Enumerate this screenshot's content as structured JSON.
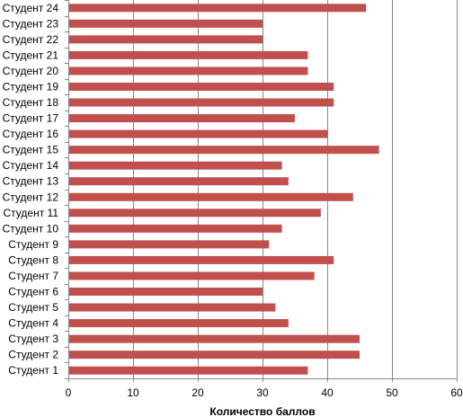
{
  "chart_data": {
    "type": "bar",
    "orientation": "horizontal",
    "title": "",
    "xlabel": "Количество баллов",
    "ylabel": "",
    "xlim": [
      0,
      60
    ],
    "x_ticks": [
      "0",
      "10",
      "20",
      "30",
      "40",
      "50",
      "60"
    ],
    "grid": "vertical-major",
    "legend": "none",
    "bar_color": "#C0504D",
    "grid_color": "#868686",
    "categories": [
      "Студент 1",
      "Студент 2",
      "Студент 3",
      "Студент 4",
      "Студент 5",
      "Студент 6",
      "Студент 7",
      "Студент 8",
      "Студент 9",
      "Студент 10",
      "Студент 11",
      "Студент 12",
      "Студент 13",
      "Студент 14",
      "Студент 15",
      "Студент 16",
      "Студент 17",
      "Студент 18",
      "Студент 19",
      "Студент 20",
      "Студент 21",
      "Студент 22",
      "Студент 23",
      "Студент 24"
    ],
    "values": [
      37,
      45,
      45,
      34,
      32,
      30,
      38,
      41,
      31,
      33,
      39,
      44,
      34,
      33,
      48,
      40,
      35,
      41,
      41,
      37,
      37,
      30,
      30,
      46
    ]
  }
}
